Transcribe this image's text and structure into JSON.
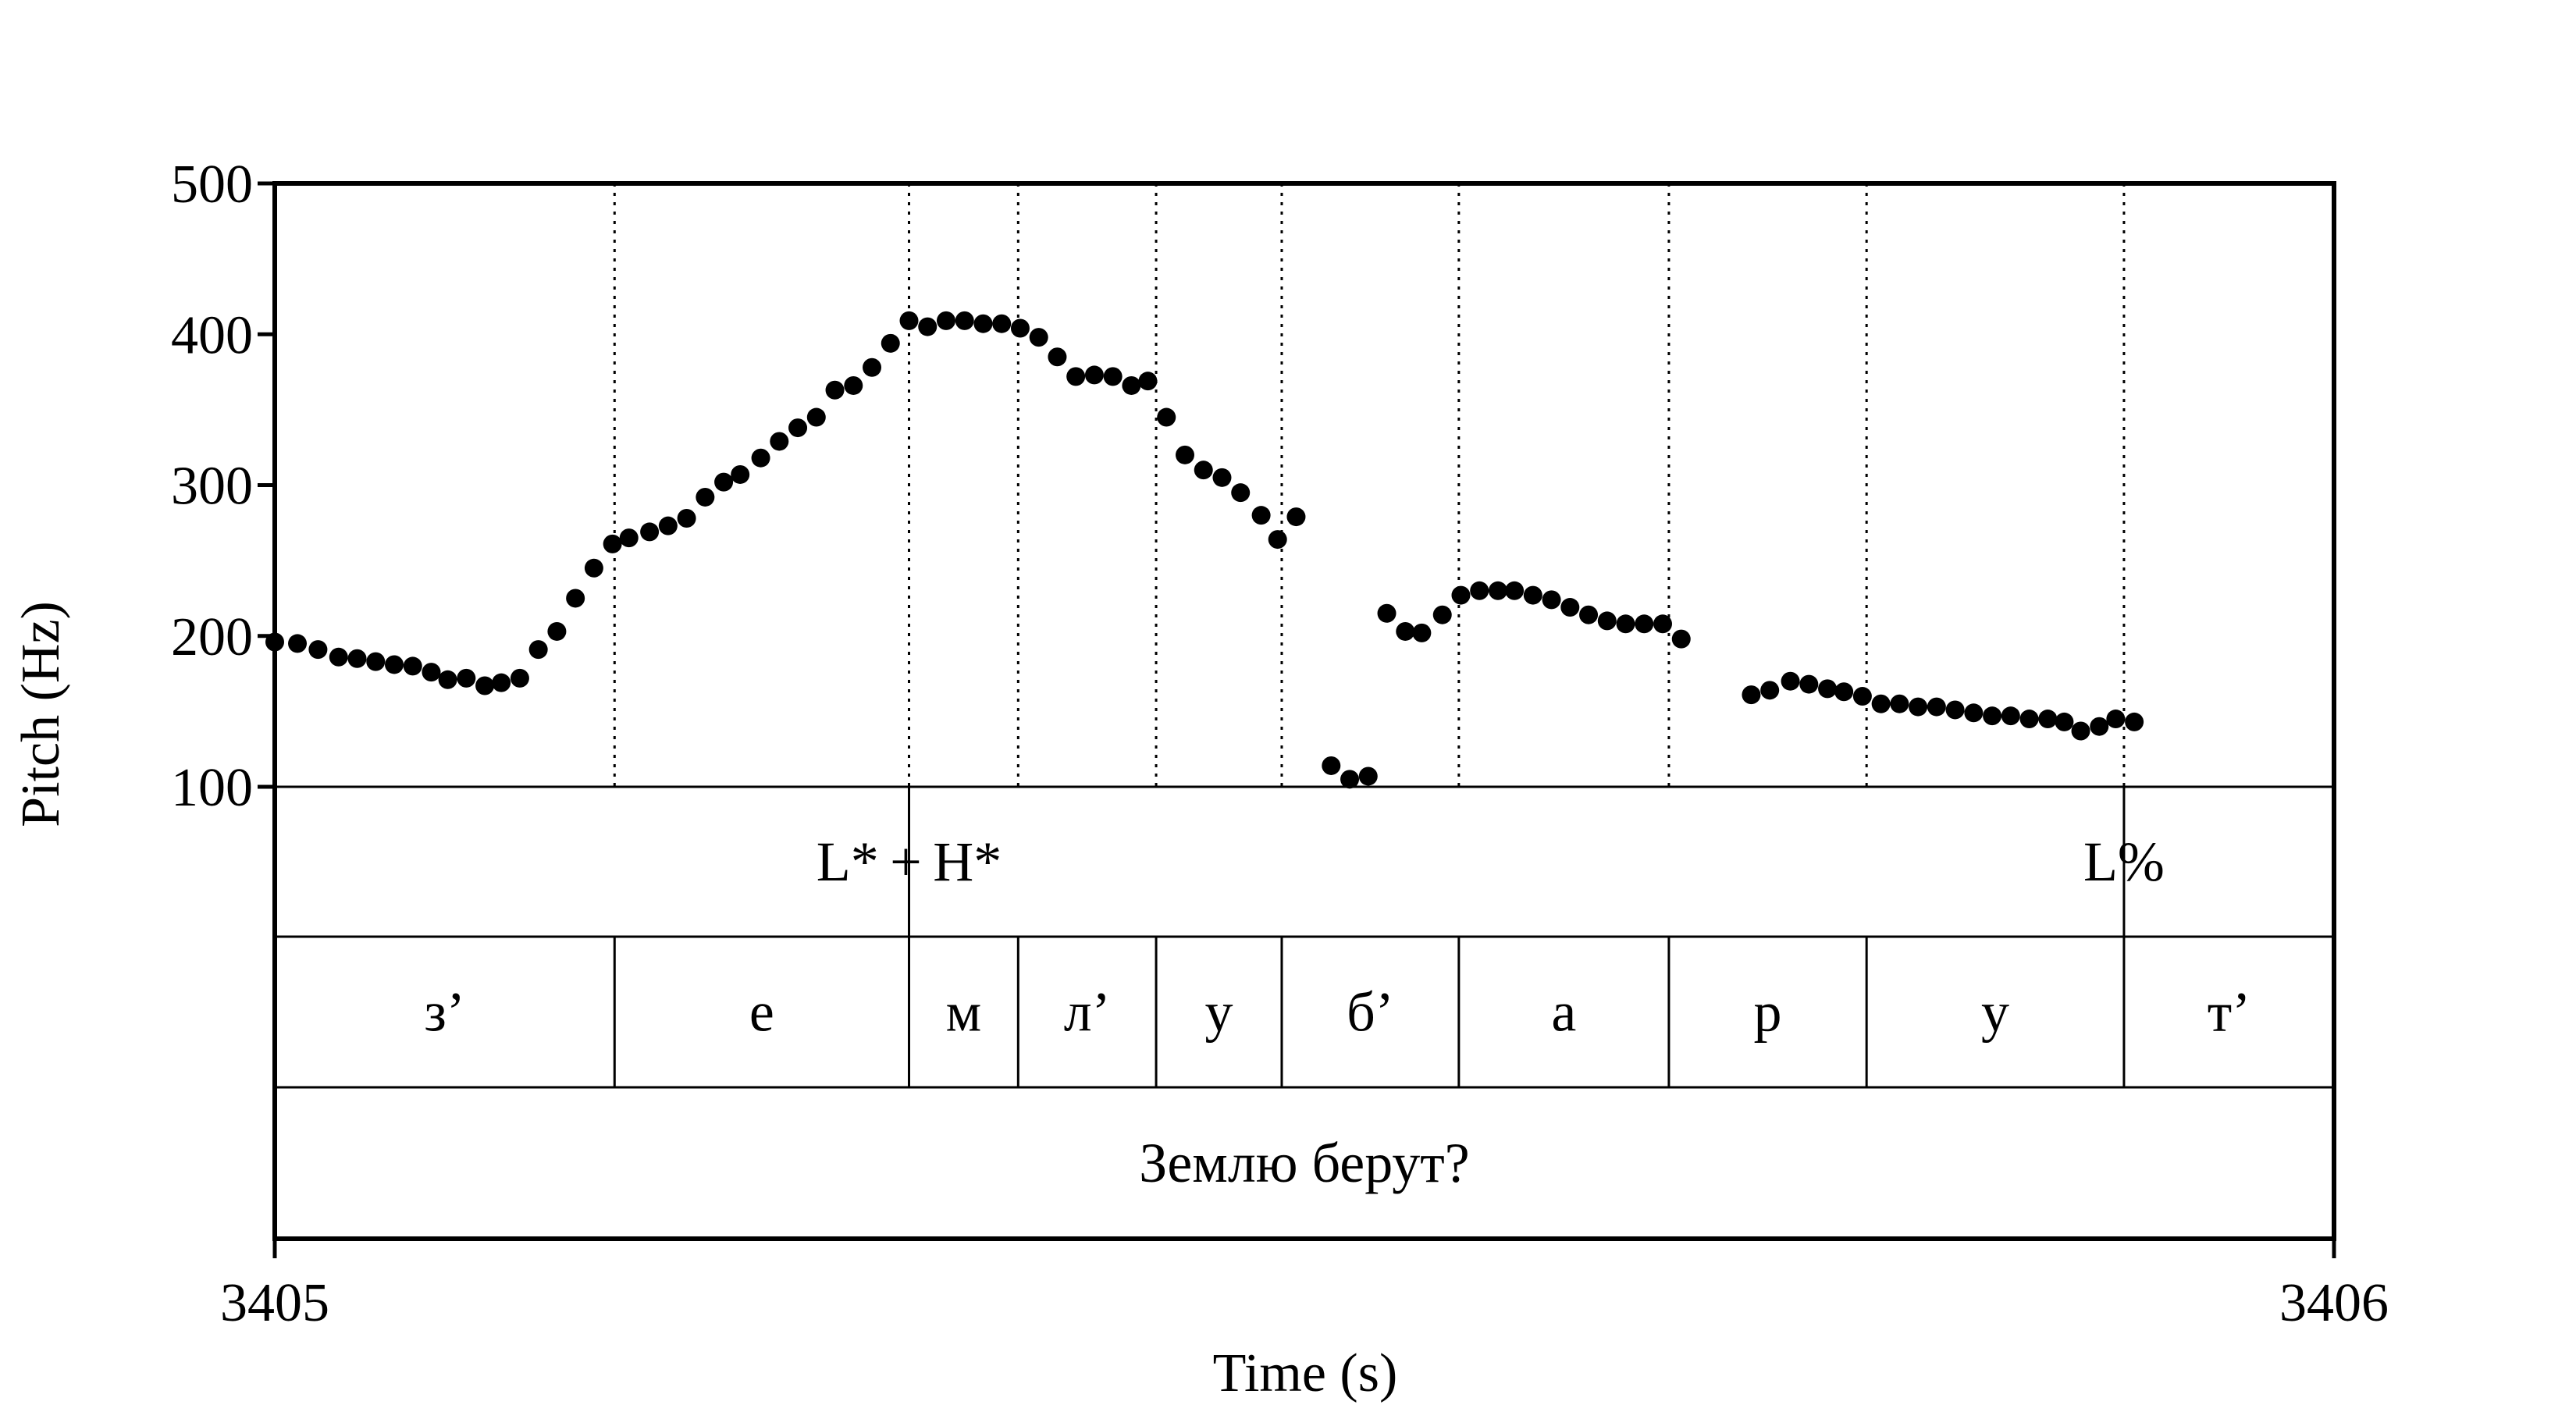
{
  "chart_data": {
    "type": "scatter",
    "xlabel": "Time (s)",
    "ylabel": "Pitch (Hz)",
    "xlim": [
      3405,
      3406
    ],
    "ylim": [
      100,
      500
    ],
    "y_ticks": [
      "100",
      "200",
      "300",
      "400",
      "500"
    ],
    "x_ticks": [
      "3405",
      "3406"
    ],
    "grid": false,
    "series": [
      {
        "points": [
          [
            3405.0,
            196
          ],
          [
            3405.011,
            195
          ],
          [
            3405.021,
            191
          ],
          [
            3405.031,
            186
          ],
          [
            3405.04,
            185
          ],
          [
            3405.049,
            183
          ],
          [
            3405.058,
            181
          ],
          [
            3405.067,
            180
          ],
          [
            3405.076,
            176
          ],
          [
            3405.084,
            171
          ],
          [
            3405.093,
            172
          ],
          [
            3405.102,
            167
          ],
          [
            3405.11,
            169
          ],
          [
            3405.119,
            172
          ],
          [
            3405.128,
            191
          ],
          [
            3405.137,
            203
          ],
          [
            3405.146,
            225
          ],
          [
            3405.155,
            245
          ],
          [
            3405.164,
            261
          ],
          [
            3405.172,
            265
          ],
          [
            3405.182,
            269
          ],
          [
            3405.191,
            273
          ],
          [
            3405.2,
            278
          ],
          [
            3405.209,
            292
          ],
          [
            3405.218,
            302
          ],
          [
            3405.226,
            307
          ],
          [
            3405.236,
            318
          ],
          [
            3405.245,
            329
          ],
          [
            3405.254,
            338
          ],
          [
            3405.263,
            345
          ],
          [
            3405.272,
            363
          ],
          [
            3405.281,
            366
          ],
          [
            3405.29,
            378
          ],
          [
            3405.299,
            394
          ],
          [
            3405.308,
            409
          ],
          [
            3405.317,
            405
          ],
          [
            3405.326,
            409
          ],
          [
            3405.335,
            409
          ],
          [
            3405.344,
            407
          ],
          [
            3405.353,
            407
          ],
          [
            3405.362,
            404
          ],
          [
            3405.371,
            398
          ],
          [
            3405.38,
            385
          ],
          [
            3405.389,
            372
          ],
          [
            3405.398,
            373
          ],
          [
            3405.407,
            372
          ],
          [
            3405.416,
            366
          ],
          [
            3405.424,
            369
          ],
          [
            3405.433,
            345
          ],
          [
            3405.442,
            320
          ],
          [
            3405.451,
            310
          ],
          [
            3405.46,
            305
          ],
          [
            3405.469,
            295
          ],
          [
            3405.479,
            280
          ],
          [
            3405.487,
            264
          ],
          [
            3405.496,
            279
          ],
          [
            3405.513,
            114
          ],
          [
            3405.522,
            105
          ],
          [
            3405.531,
            107
          ],
          [
            3405.54,
            215
          ],
          [
            3405.549,
            203
          ],
          [
            3405.557,
            202
          ],
          [
            3405.567,
            214
          ],
          [
            3405.576,
            227
          ],
          [
            3405.585,
            230
          ],
          [
            3405.594,
            230
          ],
          [
            3405.602,
            230
          ],
          [
            3405.611,
            227
          ],
          [
            3405.62,
            224
          ],
          [
            3405.629,
            219
          ],
          [
            3405.638,
            214
          ],
          [
            3405.647,
            210
          ],
          [
            3405.656,
            208
          ],
          [
            3405.665,
            208
          ],
          [
            3405.674,
            208
          ],
          [
            3405.683,
            198
          ],
          [
            3405.717,
            161
          ],
          [
            3405.726,
            164
          ],
          [
            3405.736,
            170
          ],
          [
            3405.745,
            168
          ],
          [
            3405.754,
            165
          ],
          [
            3405.762,
            163
          ],
          [
            3405.771,
            160
          ],
          [
            3405.78,
            155
          ],
          [
            3405.789,
            155
          ],
          [
            3405.798,
            153
          ],
          [
            3405.807,
            153
          ],
          [
            3405.816,
            151
          ],
          [
            3405.825,
            149
          ],
          [
            3405.834,
            147
          ],
          [
            3405.843,
            147
          ],
          [
            3405.852,
            145
          ],
          [
            3405.861,
            145
          ],
          [
            3405.869,
            143
          ],
          [
            3405.877,
            137
          ],
          [
            3405.886,
            140
          ],
          [
            3405.894,
            145
          ],
          [
            3405.903,
            143
          ]
        ]
      }
    ],
    "boundaries": [
      3405.165,
      3405.308,
      3405.361,
      3405.428,
      3405.489,
      3405.575,
      3405.677,
      3405.773,
      3405.898
    ],
    "tiers": {
      "tones": [
        {
          "label": "L* + H*",
          "time": 3405.308
        },
        {
          "label": "L%",
          "time": 3405.898
        }
      ],
      "segments": [
        {
          "label": "з’",
          "start": 3405.0,
          "end": 3405.165
        },
        {
          "label": "е",
          "start": 3405.165,
          "end": 3405.308
        },
        {
          "label": "м",
          "start": 3405.308,
          "end": 3405.361
        },
        {
          "label": "л’",
          "start": 3405.361,
          "end": 3405.428
        },
        {
          "label": "у",
          "start": 3405.428,
          "end": 3405.489
        },
        {
          "label": "б’",
          "start": 3405.489,
          "end": 3405.575
        },
        {
          "label": "а",
          "start": 3405.575,
          "end": 3405.677
        },
        {
          "label": "р",
          "start": 3405.677,
          "end": 3405.773
        },
        {
          "label": "у",
          "start": 3405.773,
          "end": 3405.898
        },
        {
          "label": "т’",
          "start": 3405.898,
          "end": 3406.0
        }
      ],
      "sentence": "Землю берут?"
    }
  }
}
